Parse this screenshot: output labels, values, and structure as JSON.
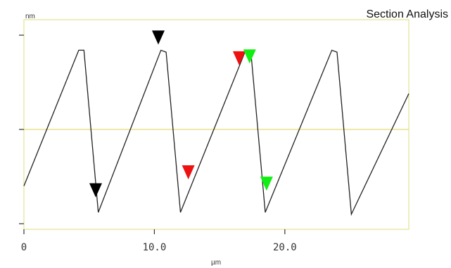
{
  "panel_title": "Section Analysis",
  "chart_data": {
    "type": "line",
    "title": "Section Analysis",
    "xlabel": "µm",
    "ylabel": "nm",
    "xlim": [
      0,
      29.5
    ],
    "ylim": [
      -1,
      1
    ],
    "x_ticks": [
      0,
      10.0,
      20.0
    ],
    "x_tick_labels": [
      "0",
      "10.0",
      "20.0"
    ],
    "y_ticks": [
      -1,
      0,
      1
    ],
    "y_tick_labels": [
      "",
      "",
      ""
    ],
    "grid": false,
    "center_line": 0,
    "colors": {
      "trace": "#222222",
      "frame": "#e8e8a8",
      "center_line": "#e4e48c",
      "marker_black": "#000000",
      "marker_red": "#ee1111",
      "marker_green": "#11ee11"
    },
    "series": [
      {
        "x": [
          0,
          4.2,
          4.6,
          5.7,
          10.5,
          10.9,
          12.0,
          17.0,
          17.4,
          18.5,
          23.6,
          24.0,
          25.1,
          29.5
        ],
        "values": [
          -0.6,
          0.84,
          0.84,
          -0.88,
          0.84,
          0.82,
          -0.88,
          0.84,
          0.82,
          -0.88,
          0.84,
          0.82,
          -0.9,
          0.38
        ]
      }
    ],
    "markers": [
      {
        "color": "black",
        "x": 10.3,
        "y": 0.9,
        "direction": "down"
      },
      {
        "color": "black",
        "x": 5.5,
        "y": -0.72,
        "direction": "down"
      },
      {
        "color": "red",
        "x": 16.5,
        "y": 0.68,
        "direction": "down"
      },
      {
        "color": "red",
        "x": 12.6,
        "y": -0.53,
        "direction": "down"
      },
      {
        "color": "green",
        "x": 17.3,
        "y": 0.7,
        "direction": "down"
      },
      {
        "color": "green",
        "x": 18.6,
        "y": -0.65,
        "direction": "down"
      }
    ]
  }
}
